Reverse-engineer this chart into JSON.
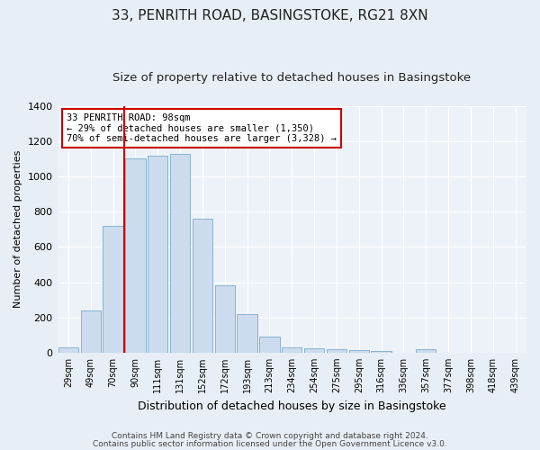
{
  "title": "33, PENRITH ROAD, BASINGSTOKE, RG21 8XN",
  "subtitle": "Size of property relative to detached houses in Basingstoke",
  "xlabel": "Distribution of detached houses by size in Basingstoke",
  "ylabel": "Number of detached properties",
  "footer_line1": "Contains HM Land Registry data © Crown copyright and database right 2024.",
  "footer_line2": "Contains public sector information licensed under the Open Government Licence v3.0.",
  "categories": [
    "29sqm",
    "49sqm",
    "70sqm",
    "90sqm",
    "111sqm",
    "131sqm",
    "152sqm",
    "172sqm",
    "193sqm",
    "213sqm",
    "234sqm",
    "254sqm",
    "275sqm",
    "295sqm",
    "316sqm",
    "336sqm",
    "357sqm",
    "377sqm",
    "398sqm",
    "418sqm",
    "439sqm"
  ],
  "values": [
    30,
    240,
    720,
    1100,
    1120,
    1130,
    760,
    380,
    220,
    90,
    30,
    25,
    20,
    15,
    10,
    0,
    20,
    0,
    0,
    0,
    0
  ],
  "bar_color": "#ccdcee",
  "bar_edge_color": "#7aaace",
  "vline_color": "#cc0000",
  "annotation_text": "33 PENRITH ROAD: 98sqm\n← 29% of detached houses are smaller (1,350)\n70% of semi-detached houses are larger (3,328) →",
  "annotation_box_color": "#ffffff",
  "annotation_box_edge": "#cc0000",
  "ylim": [
    0,
    1400
  ],
  "yticks": [
    0,
    200,
    400,
    600,
    800,
    1000,
    1200,
    1400
  ],
  "bg_color": "#e8eef5",
  "plot_bg_color": "#edf2f8",
  "grid_color": "#ffffff",
  "title_fontsize": 11,
  "subtitle_fontsize": 9.5,
  "footer_fontsize": 6.5
}
